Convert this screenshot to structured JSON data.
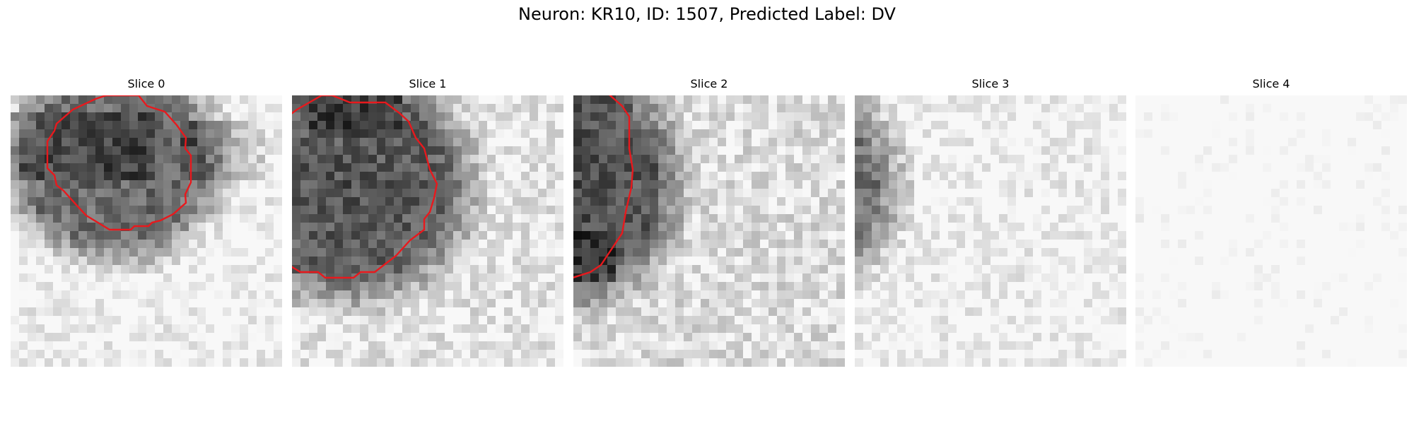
{
  "figure": {
    "title": "Neuron: KR10, ID: 1507, Predicted Label: DV"
  },
  "slices": [
    {
      "title": "Slice 0"
    },
    {
      "title": "Slice 1"
    },
    {
      "title": "Slice 2"
    },
    {
      "title": "Slice 3"
    },
    {
      "title": "Slice 4"
    }
  ],
  "colors": {
    "contour": "#e8191d",
    "background": "#ffffff"
  }
}
